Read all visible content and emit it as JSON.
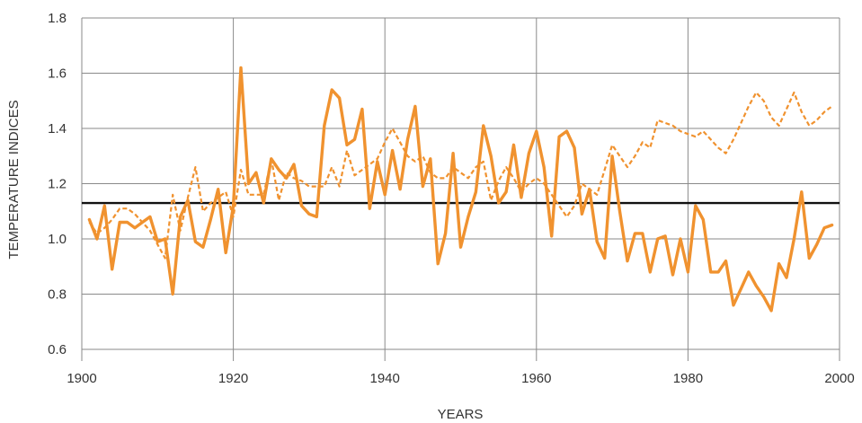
{
  "chart_data": {
    "type": "line",
    "title": "",
    "xlabel": "YEARS",
    "ylabel": "TEMPERATURE INDICES",
    "xlim": [
      1900,
      2000
    ],
    "ylim": [
      0.6,
      1.8
    ],
    "x_ticks": [
      "1900",
      "1920",
      "1940",
      "1960",
      "1980",
      "2000"
    ],
    "y_ticks": [
      "0.6",
      "0.8",
      "1.0",
      "1.2",
      "1.4",
      "1.6",
      "1.8"
    ],
    "grid": true,
    "reference_line": 1.13,
    "colors": {
      "series": "#f0922f",
      "reference": "#111111",
      "grid": "#8a8a8a"
    },
    "series": [
      {
        "style": "solid",
        "x": [
          1901,
          1902,
          1903,
          1904,
          1905,
          1906,
          1907,
          1908,
          1909,
          1910,
          1911,
          1912,
          1913,
          1914,
          1915,
          1916,
          1917,
          1918,
          1919,
          1920,
          1921,
          1922,
          1923,
          1924,
          1925,
          1926,
          1927,
          1928,
          1929,
          1930,
          1931,
          1932,
          1933,
          1934,
          1935,
          1936,
          1937,
          1938,
          1939,
          1940,
          1941,
          1942,
          1943,
          1944,
          1945,
          1946,
          1947,
          1948,
          1949,
          1950,
          1951,
          1952,
          1953,
          1954,
          1955,
          1956,
          1957,
          1958,
          1959,
          1960,
          1961,
          1962,
          1963,
          1964,
          1965,
          1966,
          1967,
          1968,
          1969,
          1970,
          1971,
          1972,
          1973,
          1974,
          1975,
          1976,
          1977,
          1978,
          1979,
          1980,
          1981,
          1982,
          1983,
          1984,
          1985,
          1986,
          1987,
          1988,
          1989,
          1990,
          1991,
          1992,
          1993,
          1994,
          1995,
          1996,
          1997,
          1998,
          1999
        ],
        "values": [
          1.07,
          1.0,
          1.12,
          0.89,
          1.06,
          1.06,
          1.04,
          1.06,
          1.08,
          0.99,
          1.0,
          0.8,
          1.08,
          1.14,
          0.99,
          0.97,
          1.07,
          1.18,
          0.95,
          1.12,
          1.62,
          1.2,
          1.24,
          1.13,
          1.29,
          1.25,
          1.22,
          1.27,
          1.12,
          1.09,
          1.08,
          1.41,
          1.54,
          1.51,
          1.34,
          1.36,
          1.47,
          1.11,
          1.28,
          1.16,
          1.32,
          1.18,
          1.36,
          1.48,
          1.19,
          1.29,
          0.91,
          1.02,
          1.31,
          0.97,
          1.08,
          1.17,
          1.41,
          1.3,
          1.13,
          1.17,
          1.34,
          1.15,
          1.31,
          1.39,
          1.26,
          1.01,
          1.37,
          1.39,
          1.33,
          1.09,
          1.18,
          0.99,
          0.93,
          1.3,
          1.1,
          0.92,
          1.02,
          1.02,
          0.88,
          1.0,
          1.01,
          0.87,
          1.0,
          0.88,
          1.12,
          1.07,
          0.88,
          0.88,
          0.92,
          0.76,
          0.82,
          0.88,
          0.83,
          0.79,
          0.74,
          0.91,
          0.86,
          1.0,
          1.17,
          0.93,
          0.98,
          1.04,
          1.05
        ]
      },
      {
        "style": "dashed",
        "x": [
          1901,
          1902,
          1903,
          1904,
          1905,
          1906,
          1907,
          1908,
          1909,
          1910,
          1911,
          1912,
          1913,
          1914,
          1915,
          1916,
          1917,
          1918,
          1919,
          1920,
          1921,
          1922,
          1923,
          1924,
          1925,
          1926,
          1927,
          1928,
          1929,
          1930,
          1931,
          1932,
          1933,
          1934,
          1935,
          1936,
          1937,
          1938,
          1939,
          1940,
          1941,
          1942,
          1943,
          1944,
          1945,
          1946,
          1947,
          1948,
          1949,
          1950,
          1951,
          1952,
          1953,
          1954,
          1955,
          1956,
          1957,
          1958,
          1959,
          1960,
          1961,
          1962,
          1963,
          1964,
          1965,
          1966,
          1967,
          1968,
          1969,
          1970,
          1971,
          1972,
          1973,
          1974,
          1975,
          1976,
          1977,
          1978,
          1979,
          1980,
          1981,
          1982,
          1983,
          1984,
          1985,
          1986,
          1987,
          1988,
          1989,
          1990,
          1991,
          1992,
          1993,
          1994,
          1995,
          1996,
          1997,
          1998,
          1999
        ],
        "values": [
          1.06,
          1.02,
          1.04,
          1.07,
          1.11,
          1.11,
          1.09,
          1.06,
          1.03,
          0.98,
          0.93,
          1.16,
          1.03,
          1.15,
          1.26,
          1.1,
          1.13,
          1.15,
          1.17,
          1.08,
          1.25,
          1.16,
          1.16,
          1.16,
          1.29,
          1.14,
          1.24,
          1.22,
          1.21,
          1.19,
          1.19,
          1.19,
          1.26,
          1.19,
          1.32,
          1.23,
          1.25,
          1.27,
          1.29,
          1.35,
          1.4,
          1.35,
          1.3,
          1.28,
          1.3,
          1.24,
          1.22,
          1.22,
          1.26,
          1.24,
          1.22,
          1.26,
          1.28,
          1.14,
          1.21,
          1.26,
          1.22,
          1.17,
          1.2,
          1.22,
          1.2,
          1.16,
          1.12,
          1.08,
          1.12,
          1.2,
          1.18,
          1.16,
          1.25,
          1.34,
          1.3,
          1.26,
          1.3,
          1.35,
          1.33,
          1.43,
          1.42,
          1.41,
          1.39,
          1.38,
          1.37,
          1.39,
          1.36,
          1.33,
          1.31,
          1.36,
          1.42,
          1.48,
          1.53,
          1.5,
          1.44,
          1.41,
          1.47,
          1.53,
          1.46,
          1.41,
          1.43,
          1.46,
          1.48
        ]
      }
    ]
  }
}
